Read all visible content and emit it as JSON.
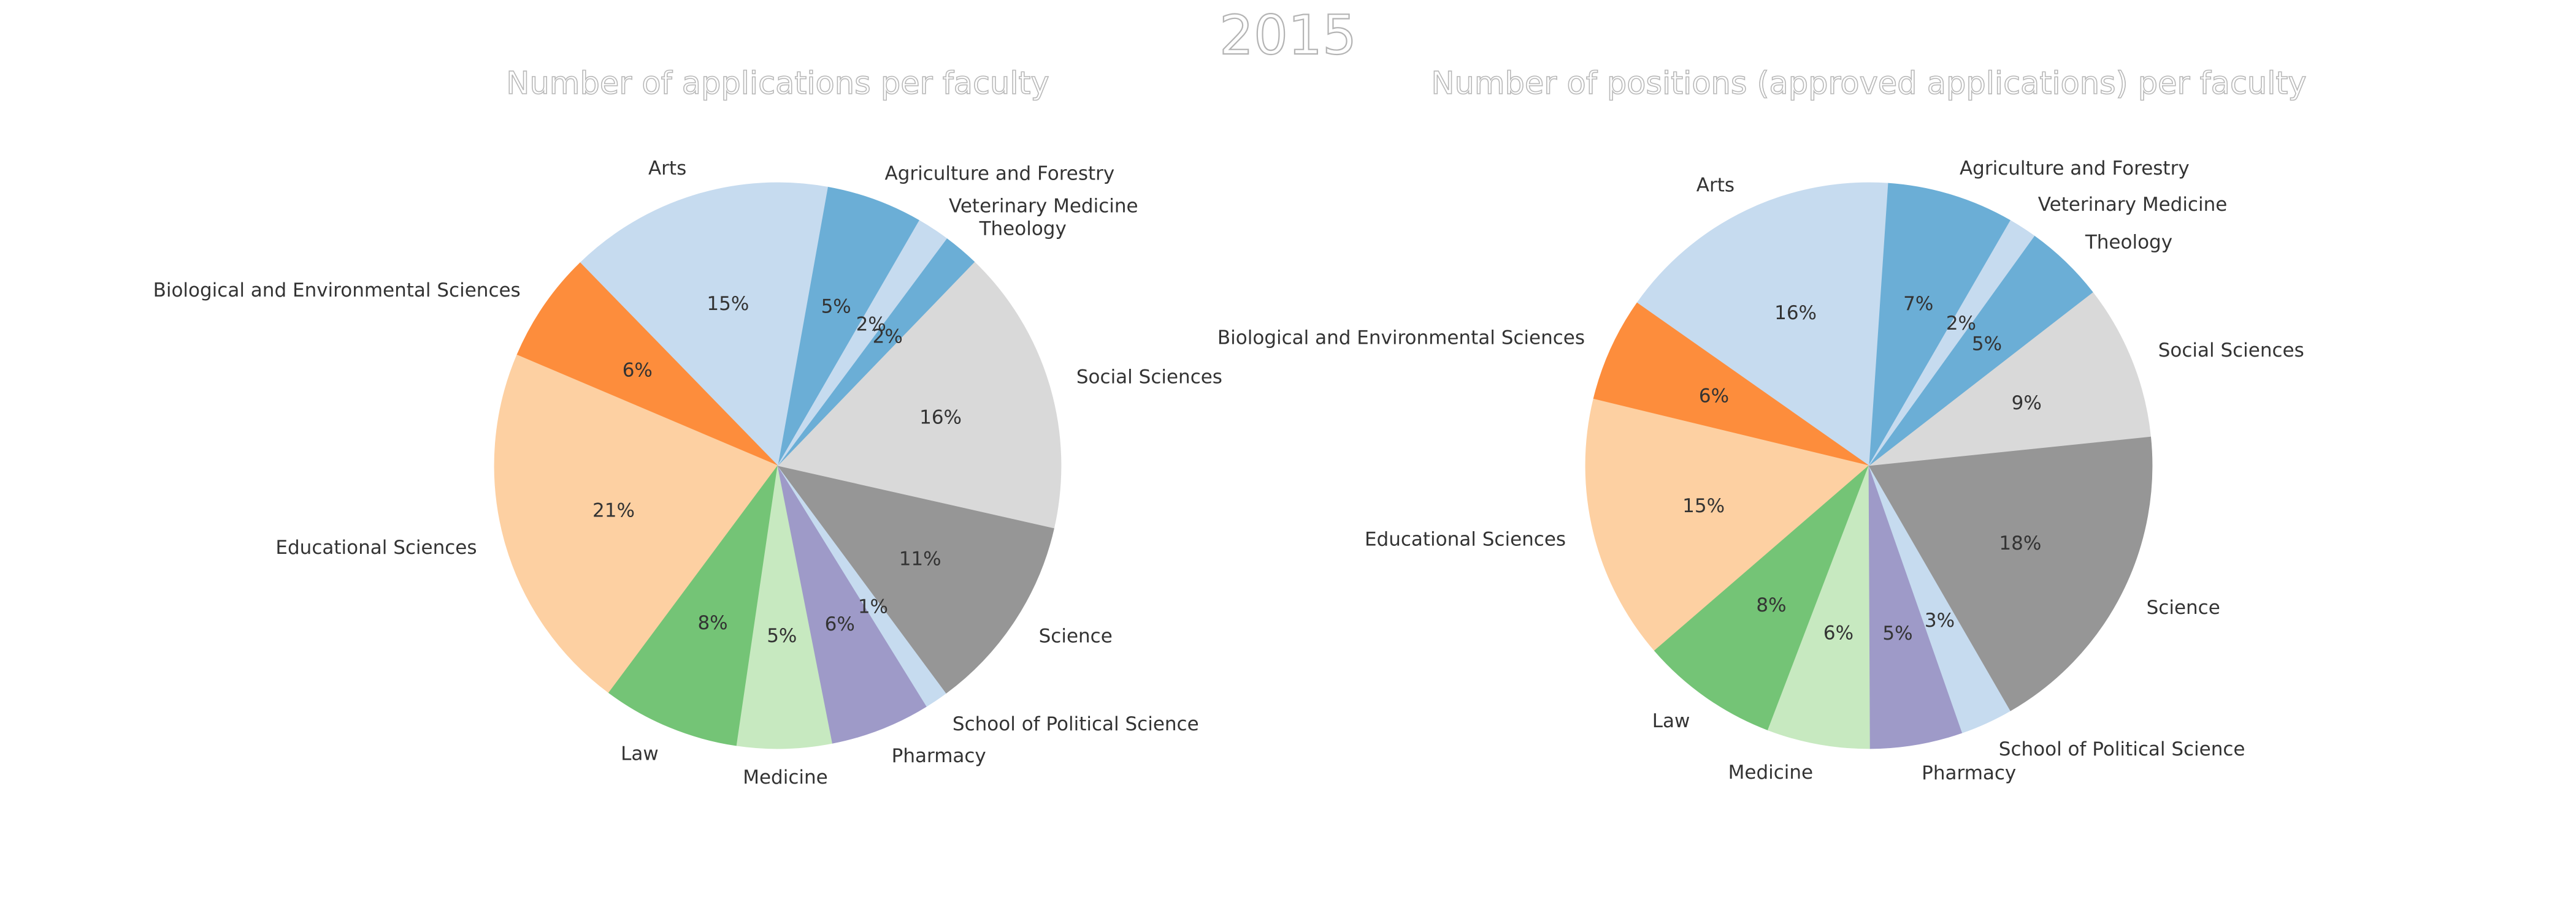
{
  "figure_title": "2015",
  "chart_data": [
    {
      "type": "pie",
      "title": "Number of applications per faculty",
      "slices": [
        {
          "label": "Agriculture and Forestry",
          "pct": "5%",
          "value": 5.4,
          "color": "#6baed6"
        },
        {
          "label": "Arts",
          "pct": "15%",
          "value": 14.8,
          "color": "#c6dbef"
        },
        {
          "label": "Biological and Environmental Sciences",
          "pct": "6%",
          "value": 6.2,
          "color": "#fd8d3c"
        },
        {
          "label": "Educational Sciences",
          "pct": "21%",
          "value": 20.8,
          "color": "#fdd0a2"
        },
        {
          "label": "Law",
          "pct": "8%",
          "value": 7.7,
          "color": "#74c476"
        },
        {
          "label": "Medicine",
          "pct": "5%",
          "value": 5.3,
          "color": "#c7e9c0"
        },
        {
          "label": "Pharmacy",
          "pct": "6%",
          "value": 5.6,
          "color": "#9e9ac8"
        },
        {
          "label": "School of Political Science",
          "pct": "1%",
          "value": 1.3,
          "color": "#c6dbef"
        },
        {
          "label": "Science",
          "pct": "11%",
          "value": 11.1,
          "color": "#969696"
        },
        {
          "label": "Social Sciences",
          "pct": "16%",
          "value": 16.0,
          "color": "#d9d9d9"
        },
        {
          "label": "Theology",
          "pct": "2%",
          "value": 2.0,
          "color": "#6baed6"
        },
        {
          "label": "Veterinary Medicine",
          "pct": "2%",
          "value": 1.8,
          "color": "#c6dbef"
        }
      ]
    },
    {
      "type": "pie",
      "title": "Number of positions (approved applications) per faculty",
      "slices": [
        {
          "label": "Agriculture and Forestry",
          "pct": "7%",
          "value": 7.3,
          "color": "#6baed6"
        },
        {
          "label": "Arts",
          "pct": "16%",
          "value": 16.4,
          "color": "#c6dbef"
        },
        {
          "label": "Biological and Environmental Sciences",
          "pct": "6%",
          "value": 6.0,
          "color": "#fd8d3c"
        },
        {
          "label": "Educational Sciences",
          "pct": "15%",
          "value": 15.2,
          "color": "#fdd0a2"
        },
        {
          "label": "Law",
          "pct": "8%",
          "value": 7.9,
          "color": "#74c476"
        },
        {
          "label": "Medicine",
          "pct": "6%",
          "value": 5.9,
          "color": "#c7e9c0"
        },
        {
          "label": "Pharmacy",
          "pct": "5%",
          "value": 5.3,
          "color": "#9e9ac8"
        },
        {
          "label": "School of Political Science",
          "pct": "3%",
          "value": 3.0,
          "color": "#c6dbef"
        },
        {
          "label": "Science",
          "pct": "18%",
          "value": 18.4,
          "color": "#969696"
        },
        {
          "label": "Social Sciences",
          "pct": "9%",
          "value": 8.9,
          "color": "#d9d9d9"
        },
        {
          "label": "Theology",
          "pct": "5%",
          "value": 4.6,
          "color": "#6baed6"
        },
        {
          "label": "Veterinary Medicine",
          "pct": "2%",
          "value": 1.6,
          "color": "#c6dbef"
        }
      ]
    }
  ]
}
